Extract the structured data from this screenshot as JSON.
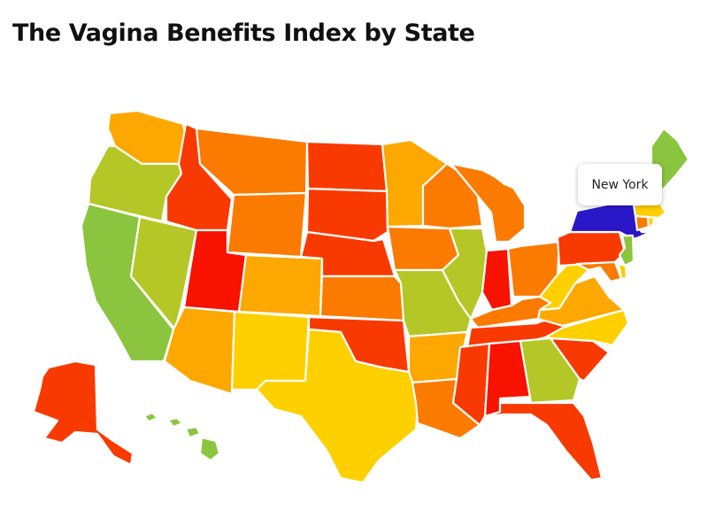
{
  "title": "The Vagina Benefits Index by State",
  "tooltip": {
    "label": "New York"
  },
  "palette": {
    "green": "#8bc53f",
    "lime": "#b5c726",
    "yellow": "#fed000",
    "amber": "#fca800",
    "orange": "#fb7a00",
    "redorange": "#f93a00",
    "red": "#f81200",
    "highlight": "#2a17c7"
  },
  "states": [
    {
      "code": "WA",
      "name": "Washington",
      "tier": "amber"
    },
    {
      "code": "OR",
      "name": "Oregon",
      "tier": "lime"
    },
    {
      "code": "CA",
      "name": "California",
      "tier": "green"
    },
    {
      "code": "NV",
      "name": "Nevada",
      "tier": "lime"
    },
    {
      "code": "ID",
      "name": "Idaho",
      "tier": "redorange"
    },
    {
      "code": "MT",
      "name": "Montana",
      "tier": "orange"
    },
    {
      "code": "WY",
      "name": "Wyoming",
      "tier": "orange"
    },
    {
      "code": "UT",
      "name": "Utah",
      "tier": "red"
    },
    {
      "code": "CO",
      "name": "Colorado",
      "tier": "amber"
    },
    {
      "code": "AZ",
      "name": "Arizona",
      "tier": "amber"
    },
    {
      "code": "NM",
      "name": "New Mexico",
      "tier": "yellow"
    },
    {
      "code": "ND",
      "name": "North Dakota",
      "tier": "redorange"
    },
    {
      "code": "SD",
      "name": "South Dakota",
      "tier": "redorange"
    },
    {
      "code": "NE",
      "name": "Nebraska",
      "tier": "redorange"
    },
    {
      "code": "KS",
      "name": "Kansas",
      "tier": "orange"
    },
    {
      "code": "OK",
      "name": "Oklahoma",
      "tier": "redorange"
    },
    {
      "code": "TX",
      "name": "Texas",
      "tier": "yellow"
    },
    {
      "code": "MN",
      "name": "Minnesota",
      "tier": "amber"
    },
    {
      "code": "IA",
      "name": "Iowa",
      "tier": "orange"
    },
    {
      "code": "MO",
      "name": "Missouri",
      "tier": "lime"
    },
    {
      "code": "AR",
      "name": "Arkansas",
      "tier": "amber"
    },
    {
      "code": "LA",
      "name": "Louisiana",
      "tier": "orange"
    },
    {
      "code": "WI",
      "name": "Wisconsin",
      "tier": "orange"
    },
    {
      "code": "IL",
      "name": "Illinois",
      "tier": "lime"
    },
    {
      "code": "MI",
      "name": "Michigan",
      "tier": "orange"
    },
    {
      "code": "IN",
      "name": "Indiana",
      "tier": "red"
    },
    {
      "code": "OH",
      "name": "Ohio",
      "tier": "orange"
    },
    {
      "code": "KY",
      "name": "Kentucky",
      "tier": "orange"
    },
    {
      "code": "TN",
      "name": "Tennessee",
      "tier": "redorange"
    },
    {
      "code": "MS",
      "name": "Mississippi",
      "tier": "redorange"
    },
    {
      "code": "AL",
      "name": "Alabama",
      "tier": "red"
    },
    {
      "code": "GA",
      "name": "Georgia",
      "tier": "lime"
    },
    {
      "code": "FL",
      "name": "Florida",
      "tier": "redorange"
    },
    {
      "code": "SC",
      "name": "South Carolina",
      "tier": "redorange"
    },
    {
      "code": "NC",
      "name": "North Carolina",
      "tier": "yellow"
    },
    {
      "code": "VA",
      "name": "Virginia",
      "tier": "amber"
    },
    {
      "code": "WV",
      "name": "West Virginia",
      "tier": "yellow"
    },
    {
      "code": "PA",
      "name": "Pennsylvania",
      "tier": "redorange"
    },
    {
      "code": "NY",
      "name": "New York",
      "tier": "highlight"
    },
    {
      "code": "NJ",
      "name": "New Jersey",
      "tier": "green"
    },
    {
      "code": "MD",
      "name": "Maryland",
      "tier": "orange"
    },
    {
      "code": "DE",
      "name": "Delaware",
      "tier": "yellow"
    },
    {
      "code": "CT",
      "name": "Connecticut",
      "tier": "orange"
    },
    {
      "code": "RI",
      "name": "Rhode Island",
      "tier": "yellow"
    },
    {
      "code": "MA",
      "name": "Massachusetts",
      "tier": "yellow"
    },
    {
      "code": "VT",
      "name": "Vermont",
      "tier": "yellow"
    },
    {
      "code": "NH",
      "name": "New Hampshire",
      "tier": "orange"
    },
    {
      "code": "ME",
      "name": "Maine",
      "tier": "green"
    },
    {
      "code": "AK",
      "name": "Alaska",
      "tier": "redorange"
    },
    {
      "code": "HI",
      "name": "Hawaii",
      "tier": "green"
    }
  ]
}
